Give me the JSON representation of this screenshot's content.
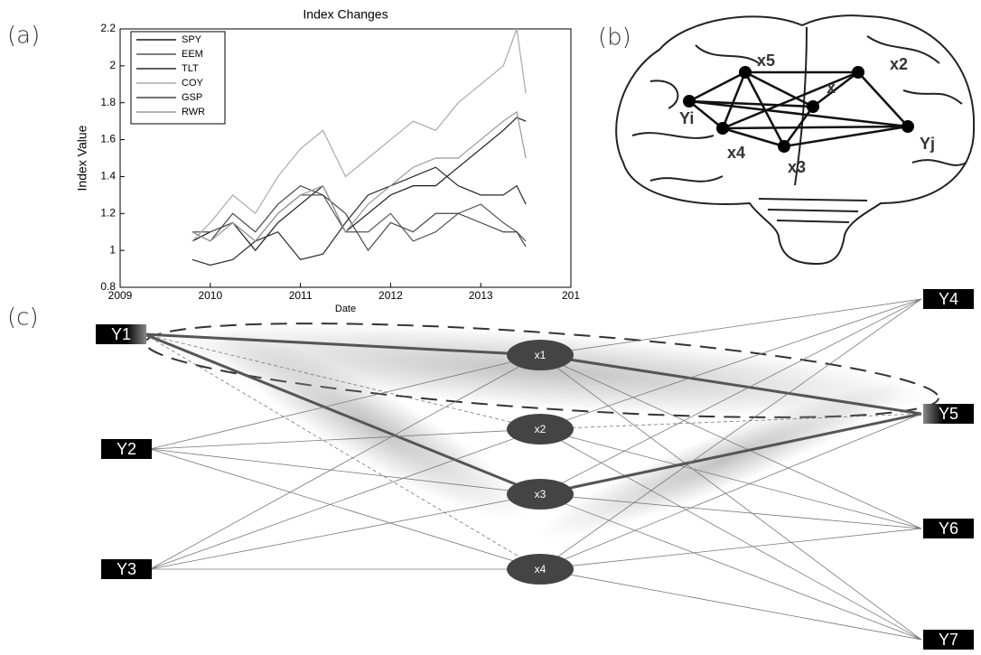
{
  "panel_labels": [
    "(a)",
    "(b)",
    "(c)"
  ],
  "chart_data": {
    "type": "line",
    "title": "Index Changes",
    "x_label": "Date",
    "y_label": "Index Value",
    "x": [
      2009.8,
      2010.0,
      2010.25,
      2010.5,
      2010.75,
      2011.0,
      2011.25,
      2011.5,
      2011.75,
      2012.0,
      2012.25,
      2012.5,
      2012.75,
      2013.0,
      2013.25,
      2013.4,
      2013.5
    ],
    "series": [
      {
        "name": "SPY",
        "color": "#1a1a1a",
        "values": [
          1.05,
          1.1,
          1.15,
          1.0,
          1.15,
          1.25,
          1.35,
          1.1,
          1.2,
          1.3,
          1.35,
          1.35,
          1.45,
          1.55,
          1.65,
          1.72,
          1.7
        ]
      },
      {
        "name": "EEM",
        "color": "#555555",
        "values": [
          1.1,
          1.1,
          1.15,
          1.05,
          1.2,
          1.3,
          1.3,
          1.1,
          1.1,
          1.2,
          1.05,
          1.1,
          1.2,
          1.25,
          1.15,
          1.1,
          1.05
        ]
      },
      {
        "name": "TLT",
        "color": "#2a2a2a",
        "values": [
          0.95,
          0.92,
          0.95,
          1.05,
          1.1,
          0.95,
          0.98,
          1.15,
          1.3,
          1.35,
          1.4,
          1.45,
          1.35,
          1.3,
          1.3,
          1.35,
          1.25
        ]
      },
      {
        "name": "COY",
        "color": "#aaaaaa",
        "values": [
          1.05,
          1.15,
          1.3,
          1.2,
          1.4,
          1.55,
          1.65,
          1.4,
          1.5,
          1.6,
          1.7,
          1.65,
          1.8,
          1.9,
          2.0,
          2.2,
          1.85
        ]
      },
      {
        "name": "GSP",
        "color": "#444444",
        "values": [
          1.1,
          1.05,
          1.2,
          1.1,
          1.25,
          1.35,
          1.3,
          1.2,
          1.0,
          1.15,
          1.1,
          1.2,
          1.2,
          1.15,
          1.1,
          1.1,
          1.02
        ]
      },
      {
        "name": "RWR",
        "color": "#999999",
        "values": [
          1.1,
          1.05,
          1.15,
          1.05,
          1.2,
          1.3,
          1.35,
          1.1,
          1.25,
          1.35,
          1.45,
          1.5,
          1.5,
          1.6,
          1.7,
          1.75,
          1.5
        ]
      }
    ],
    "xlim": [
      2009,
      2014
    ],
    "xticks": [
      2009,
      2010,
      2011,
      2012,
      2013,
      {
        "value": 2014,
        "label": "201"
      }
    ],
    "ylim": [
      0.8,
      2.2
    ],
    "yticks": [
      0.8,
      1,
      1.2,
      1.4,
      1.6,
      1.8,
      2,
      2.2
    ],
    "legend": "upper-left"
  },
  "brain": {
    "nodes": [
      "x5",
      "x2",
      "x",
      "Yi",
      "Yj",
      "x4",
      "x3"
    ]
  },
  "network": {
    "inputs": [
      "Y1",
      "Y2",
      "Y3"
    ],
    "hidden": [
      "x1",
      "x2",
      "x3",
      "x4"
    ],
    "outputs": [
      "Y4",
      "Y5",
      "Y6",
      "Y7"
    ]
  }
}
